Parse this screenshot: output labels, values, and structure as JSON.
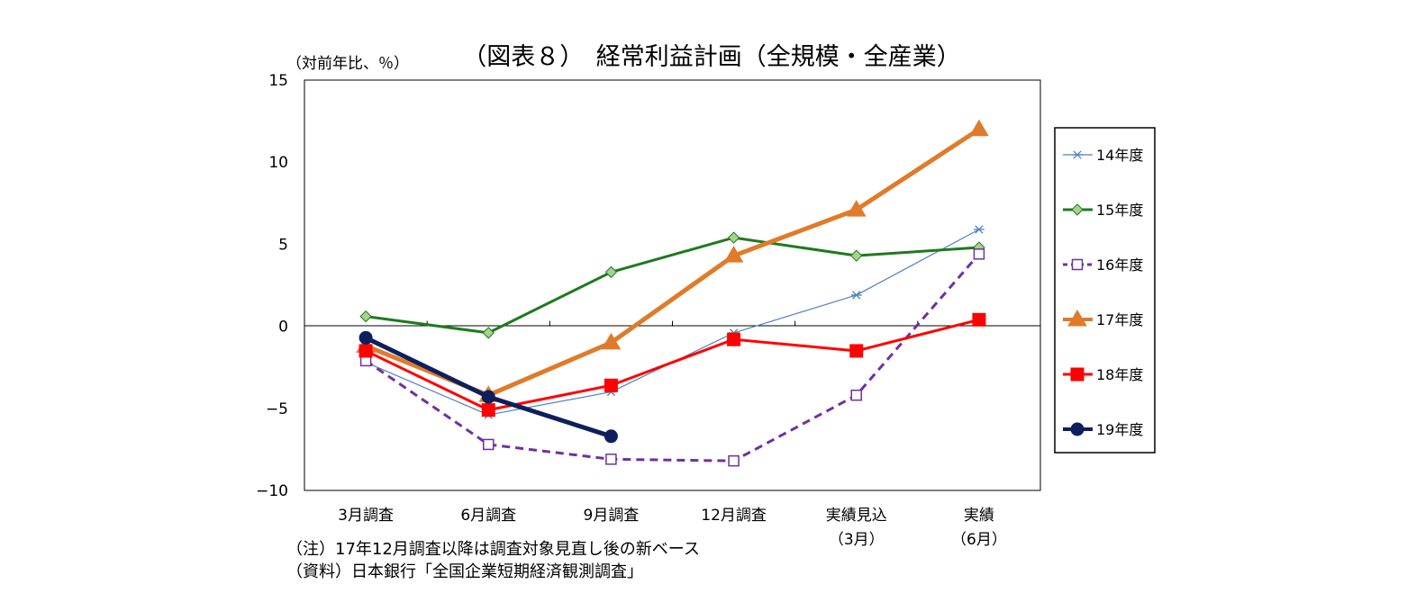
{
  "chart_data": {
    "type": "line",
    "title": "（図表８）　経常利益計画（全規模・全産業）",
    "ylabel": "（対前年比、％）",
    "ylim": [
      -10,
      15
    ],
    "yticks": [
      "15",
      "10",
      "5",
      "0",
      "−5",
      "−10"
    ],
    "ytick_values": [
      15,
      10,
      5,
      0,
      -5,
      -10
    ],
    "categories": [
      [
        "3月調査"
      ],
      [
        "6月調査"
      ],
      [
        "9月調査"
      ],
      [
        "12月調査"
      ],
      [
        "実績見込",
        "（3月）"
      ],
      [
        "実績",
        "（6月）"
      ]
    ],
    "legend_position": "right",
    "series": [
      {
        "name": "14年度",
        "color": "#4f81bd",
        "dash": "none",
        "width": 1.2,
        "marker": "star",
        "values": [
          -2.2,
          -5.4,
          -4.0,
          -0.4,
          1.9,
          5.9
        ]
      },
      {
        "name": "15年度",
        "color": "#1e7a1e",
        "dash": "none",
        "width": 3,
        "marker": "diamond",
        "values": [
          0.6,
          -0.4,
          3.3,
          5.4,
          4.3,
          4.8
        ]
      },
      {
        "name": "16年度",
        "color": "#7030a0",
        "dash": "9,6",
        "width": 3,
        "marker": "hollow-square",
        "values": [
          -2.1,
          -7.2,
          -8.1,
          -8.2,
          -4.2,
          4.4
        ]
      },
      {
        "name": "17年度",
        "color": "#e07b2a",
        "dash": "none",
        "width": 5,
        "marker": "triangle",
        "values": [
          -1.2,
          -4.2,
          -1.0,
          4.3,
          7.1,
          12.0
        ]
      },
      {
        "name": "18年度",
        "color": "#ff0000",
        "dash": "none",
        "width": 3,
        "marker": "square",
        "values": [
          -1.5,
          -5.1,
          -3.6,
          -0.8,
          -1.5,
          0.4
        ]
      },
      {
        "name": "19年度",
        "color": "#0d1f5c",
        "dash": "none",
        "width": 5,
        "marker": "circle",
        "values": [
          -0.7,
          -4.3,
          -6.7,
          null,
          null,
          null
        ]
      }
    ],
    "notes": [
      "（注）17年12月調査以降は調査対象見直し後の新ベース",
      "（資料）日本銀行「全国企業短期経済観測調査」"
    ]
  }
}
